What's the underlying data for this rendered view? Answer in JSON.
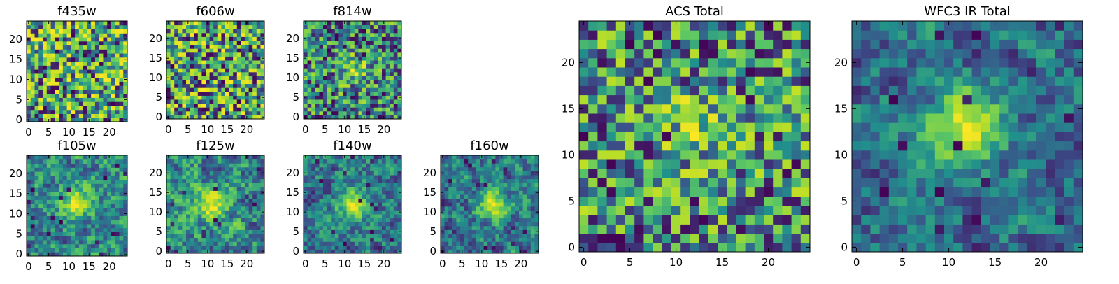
{
  "figure": {
    "colormap": [
      "#440154",
      "#3b528b",
      "#21918c",
      "#5ec962",
      "#bddf26",
      "#fde725"
    ]
  },
  "chart_data": [
    {
      "type": "heatmap",
      "title": "f435w",
      "grid_size": 25,
      "xlim": [
        0,
        24
      ],
      "ylim": [
        0,
        24
      ],
      "xticks": [
        0,
        5,
        10,
        15,
        20
      ],
      "yticks": [
        0,
        5,
        10,
        15,
        20
      ],
      "pattern": "noise",
      "seed": 11,
      "peak_center": [
        12,
        12
      ],
      "peak_strength": 0.0
    },
    {
      "type": "heatmap",
      "title": "f606w",
      "grid_size": 25,
      "xlim": [
        0,
        24
      ],
      "ylim": [
        0,
        24
      ],
      "xticks": [
        0,
        5,
        10,
        15,
        20
      ],
      "yticks": [
        0,
        5,
        10,
        15,
        20
      ],
      "pattern": "noise",
      "seed": 23,
      "peak_center": [
        12,
        12
      ],
      "peak_strength": 0.0
    },
    {
      "type": "heatmap",
      "title": "f814w",
      "grid_size": 25,
      "xlim": [
        0,
        24
      ],
      "ylim": [
        0,
        24
      ],
      "xticks": [
        0,
        5,
        10,
        15,
        20
      ],
      "yticks": [
        0,
        5,
        10,
        15,
        20
      ],
      "pattern": "noise_peak",
      "seed": 37,
      "peak_center": [
        13,
        12
      ],
      "peak_strength": 0.35
    },
    {
      "type": "heatmap",
      "title": "f105w",
      "grid_size": 25,
      "xlim": [
        0,
        24
      ],
      "ylim": [
        0,
        24
      ],
      "xticks": [
        0,
        5,
        10,
        15,
        20
      ],
      "yticks": [
        0,
        5,
        10,
        15,
        20
      ],
      "pattern": "smooth_peak",
      "seed": 41,
      "peak_center": [
        12,
        13
      ],
      "peak_strength": 0.55
    },
    {
      "type": "heatmap",
      "title": "f125w",
      "grid_size": 25,
      "xlim": [
        0,
        24
      ],
      "ylim": [
        0,
        24
      ],
      "xticks": [
        0,
        5,
        10,
        15,
        20
      ],
      "yticks": [
        0,
        5,
        10,
        15,
        20
      ],
      "pattern": "smooth_peak",
      "seed": 53,
      "peak_center": [
        11,
        12
      ],
      "peak_strength": 0.5
    },
    {
      "type": "heatmap",
      "title": "f140w",
      "grid_size": 25,
      "xlim": [
        0,
        24
      ],
      "ylim": [
        0,
        24
      ],
      "xticks": [
        0,
        5,
        10,
        15,
        20
      ],
      "yticks": [
        0,
        5,
        10,
        15,
        20
      ],
      "pattern": "smooth_peak",
      "seed": 67,
      "peak_center": [
        12,
        12
      ],
      "peak_strength": 0.55
    },
    {
      "type": "heatmap",
      "title": "f160w",
      "grid_size": 25,
      "xlim": [
        0,
        24
      ],
      "ylim": [
        0,
        24
      ],
      "xticks": [
        0,
        5,
        10,
        15,
        20
      ],
      "yticks": [
        0,
        5,
        10,
        15,
        20
      ],
      "pattern": "smooth_peak",
      "seed": 79,
      "peak_center": [
        13,
        12
      ],
      "peak_strength": 0.6
    },
    {
      "type": "heatmap",
      "title": "ACS Total",
      "grid_size": 25,
      "xlim": [
        0,
        24
      ],
      "ylim": [
        0,
        24
      ],
      "xticks": [
        0,
        5,
        10,
        15,
        20
      ],
      "yticks": [
        0,
        5,
        10,
        15,
        20
      ],
      "pattern": "noise_peak",
      "seed": 97,
      "peak_center": [
        12,
        13
      ],
      "peak_strength": 0.3
    },
    {
      "type": "heatmap",
      "title": "WFC3 IR Total",
      "grid_size": 25,
      "xlim": [
        0,
        24
      ],
      "ylim": [
        0,
        24
      ],
      "xticks": [
        0,
        5,
        10,
        15,
        20
      ],
      "yticks": [
        0,
        5,
        10,
        15,
        20
      ],
      "pattern": "smooth_peak",
      "seed": 101,
      "peak_center": [
        12,
        13
      ],
      "peak_strength": 0.75
    }
  ]
}
